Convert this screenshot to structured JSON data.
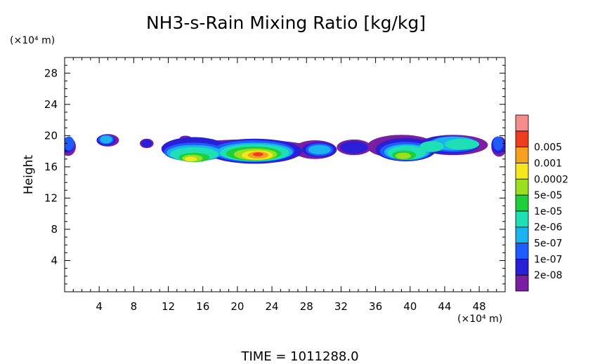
{
  "chart_data": {
    "type": "heatmap",
    "title": "NH3-s-Rain Mixing Ratio [kg/kg]",
    "ylabel": "Height",
    "y_unit": "(×10⁴ m)",
    "x_unit": "(×10⁴ m)",
    "xlim": [
      0,
      51
    ],
    "ylim": [
      0,
      30
    ],
    "x_ticks": [
      4,
      8,
      12,
      16,
      20,
      24,
      28,
      32,
      36,
      40,
      44,
      48
    ],
    "y_ticks": [
      4,
      8,
      12,
      16,
      20,
      24,
      28
    ],
    "time_label": "TIME  =  1011288.0",
    "colorbar": {
      "levels": [
        "2e-08",
        "1e-07",
        "5e-07",
        "2e-06",
        "1e-05",
        "5e-05",
        "0.0002",
        "0.001",
        "0.005"
      ],
      "colors": [
        "#7a1fa2",
        "#2a1fd6",
        "#1e5cff",
        "#19b4f0",
        "#1ee0b4",
        "#1ecf3c",
        "#9be01e",
        "#f5e61e",
        "#f5a01e",
        "#f03c1e",
        "#f58c8c"
      ]
    },
    "layers": [
      {
        "level": 0,
        "color": "#7a1fa2",
        "blobs": [
          [
            0.4,
            18.6,
            0.9,
            1.2
          ],
          [
            5,
            19.4,
            1.3,
            0.8
          ],
          [
            9.5,
            19.0,
            0.8,
            0.6
          ],
          [
            14,
            19.6,
            0.7,
            0.4
          ],
          [
            21,
            18.2,
            8,
            1.3
          ],
          [
            29,
            18.2,
            2.5,
            1.2
          ],
          [
            33.5,
            18.5,
            2,
            1.0
          ],
          [
            39,
            18.6,
            4,
            1.5
          ],
          [
            45,
            18.8,
            4,
            1.3
          ],
          [
            50.3,
            18.6,
            0.9,
            1.3
          ]
        ]
      },
      {
        "level": 1,
        "color": "#2a1fd6",
        "blobs": [
          [
            0.4,
            18.8,
            0.7,
            1.0
          ],
          [
            4.8,
            19.4,
            1.1,
            0.7
          ],
          [
            9.5,
            19.0,
            0.6,
            0.5
          ],
          [
            15,
            18.3,
            3.8,
            1.5
          ],
          [
            22,
            18.0,
            5.5,
            1.6
          ],
          [
            29.5,
            18.2,
            2.0,
            1.0
          ],
          [
            33.5,
            18.5,
            1.6,
            0.8
          ],
          [
            39.5,
            18.2,
            3.5,
            1.5
          ],
          [
            44.5,
            18.8,
            3.5,
            1.2
          ],
          [
            50.2,
            18.8,
            0.8,
            1.1
          ]
        ]
      },
      {
        "level": 2,
        "color": "#1e5cff",
        "blobs": [
          [
            0.5,
            19.0,
            0.6,
            0.9
          ],
          [
            4.8,
            19.5,
            0.9,
            0.6
          ],
          [
            15,
            17.9,
            3.5,
            1.2
          ],
          [
            21.8,
            18.0,
            4.8,
            1.4
          ],
          [
            29.5,
            18.2,
            1.6,
            0.8
          ],
          [
            39.5,
            18.0,
            3.0,
            1.2
          ],
          [
            45,
            18.9,
            3.0,
            1.0
          ],
          [
            50.2,
            19.0,
            0.6,
            0.9
          ]
        ]
      },
      {
        "level": 3,
        "color": "#19b4f0",
        "blobs": [
          [
            4.8,
            19.5,
            0.7,
            0.5
          ],
          [
            15,
            17.8,
            3.2,
            1.0
          ],
          [
            22,
            17.9,
            4.4,
            1.2
          ],
          [
            29.5,
            18.2,
            1.3,
            0.6
          ],
          [
            39.6,
            17.9,
            2.6,
            1.0
          ],
          [
            45,
            19.0,
            2.6,
            0.9
          ]
        ]
      },
      {
        "level": 4,
        "color": "#1ee0b4",
        "blobs": [
          [
            15,
            17.6,
            2.8,
            0.9
          ],
          [
            22,
            17.8,
            4.0,
            1.1
          ],
          [
            39.6,
            17.8,
            2.2,
            0.9
          ],
          [
            42.5,
            18.6,
            1.4,
            0.7
          ],
          [
            46,
            18.9,
            2.0,
            0.7
          ]
        ]
      },
      {
        "level": 5,
        "color": "#1ecf3c",
        "blobs": [
          [
            15,
            17.2,
            1.8,
            0.6
          ],
          [
            21.9,
            17.7,
            3.2,
            0.9
          ],
          [
            39.3,
            17.5,
            1.4,
            0.6
          ]
        ]
      },
      {
        "level": 6,
        "color": "#9be01e",
        "blobs": [
          [
            14.8,
            17.1,
            1.2,
            0.45
          ],
          [
            22.1,
            17.6,
            2.5,
            0.75
          ],
          [
            39.2,
            17.4,
            0.9,
            0.4
          ]
        ]
      },
      {
        "level": 7,
        "color": "#f5e61e",
        "blobs": [
          [
            14.6,
            17.0,
            0.7,
            0.3
          ],
          [
            22.3,
            17.5,
            1.8,
            0.6
          ]
        ]
      },
      {
        "level": 8,
        "color": "#f5a01e",
        "blobs": [
          [
            22.4,
            17.5,
            1.2,
            0.45
          ]
        ]
      },
      {
        "level": 9,
        "color": "#f03c1e",
        "blobs": [
          [
            22.4,
            17.6,
            0.6,
            0.25
          ]
        ]
      }
    ]
  }
}
